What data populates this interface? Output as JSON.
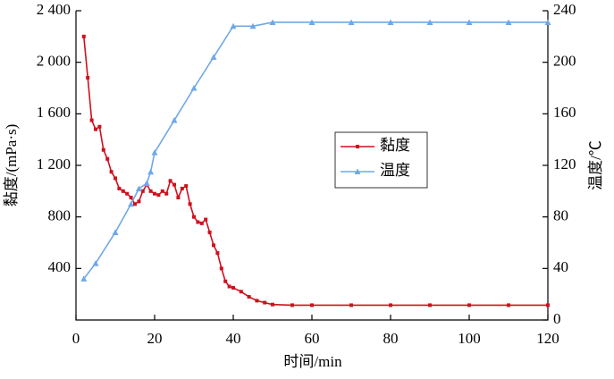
{
  "chart_data": {
    "type": "line",
    "xlabel": "时间/min",
    "ylabel": "黏度/(mPa·s)",
    "y2label": "温度/℃",
    "xlim": [
      0,
      120
    ],
    "xticks": [
      0,
      20,
      40,
      60,
      80,
      100,
      120
    ],
    "ylim": [
      0,
      2400
    ],
    "yticks": [
      400,
      800,
      {
        "value": 1200,
        "label": "1 200"
      },
      {
        "value": 1600,
        "label": "1 600"
      },
      {
        "value": 2000,
        "label": "2 000"
      },
      {
        "value": 2400,
        "label": "2 400"
      }
    ],
    "y2lim": [
      0,
      240
    ],
    "y2ticks": [
      0,
      40,
      80,
      120,
      160,
      200,
      240
    ],
    "legend": "center right",
    "series": [
      {
        "name": "黏度",
        "color": "#d0101e",
        "marker": "square",
        "axis": "y",
        "x": [
          2,
          3,
          4,
          5,
          6,
          7,
          8,
          9,
          10,
          11,
          12,
          13,
          14,
          15,
          16,
          17,
          18,
          19,
          20,
          21,
          22,
          23,
          24,
          25,
          26,
          27,
          28,
          29,
          30,
          31,
          32,
          33,
          34,
          35,
          36,
          37,
          38,
          39,
          40,
          42,
          44,
          46,
          48,
          50,
          55,
          60,
          70,
          80,
          90,
          100,
          110,
          120
        ],
        "values": [
          2200,
          1880,
          1550,
          1480,
          1500,
          1320,
          1250,
          1150,
          1100,
          1020,
          1000,
          980,
          950,
          900,
          920,
          1000,
          1050,
          1000,
          980,
          970,
          1000,
          980,
          1080,
          1050,
          950,
          1020,
          1040,
          900,
          800,
          760,
          750,
          780,
          680,
          580,
          520,
          400,
          300,
          260,
          250,
          220,
          180,
          150,
          135,
          120,
          115,
          115,
          115,
          115,
          115,
          115,
          115,
          115
        ]
      },
      {
        "name": "温度",
        "color": "#6fa8e8",
        "marker": "triangle",
        "axis": "y2",
        "x": [
          2,
          5,
          10,
          14,
          16,
          18,
          19,
          20,
          25,
          30,
          35,
          40,
          45,
          50,
          60,
          70,
          80,
          90,
          100,
          110,
          120
        ],
        "values": [
          32,
          44,
          68,
          90,
          102,
          106,
          115,
          130,
          155,
          180,
          204,
          228,
          228,
          231,
          231,
          231,
          231,
          231,
          231,
          231,
          231
        ]
      }
    ]
  }
}
